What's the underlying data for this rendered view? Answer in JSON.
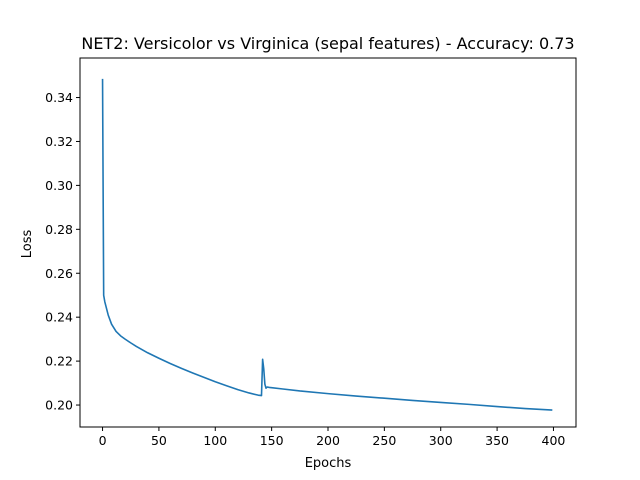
{
  "chart_data": {
    "type": "line",
    "title": "NET2: Versicolor vs Virginica (sepal features) - Accuracy: 0.73",
    "xlabel": "Epochs",
    "ylabel": "Loss",
    "xlim": [
      -20,
      420
    ],
    "ylim": [
      0.19,
      0.358
    ],
    "xticks": [
      0,
      50,
      100,
      150,
      200,
      250,
      300,
      350,
      400
    ],
    "yticks": [
      0.2,
      0.22,
      0.24,
      0.26,
      0.28,
      0.3,
      0.32,
      0.34
    ],
    "grid": false,
    "color": "#1f77b4",
    "series": [
      {
        "x": [
          0,
          1,
          2,
          3,
          5,
          8,
          12,
          16,
          20,
          25,
          30,
          40,
          50,
          60,
          70,
          80,
          90,
          100,
          110,
          120,
          130,
          138,
          141,
          142,
          143,
          144,
          145,
          146,
          148,
          150,
          160,
          175,
          200,
          225,
          250,
          275,
          300,
          325,
          350,
          375,
          399
        ],
        "y": [
          0.3485,
          0.25,
          0.247,
          0.245,
          0.241,
          0.2368,
          0.2335,
          0.2315,
          0.23,
          0.2283,
          0.2267,
          0.2238,
          0.2213,
          0.2189,
          0.2167,
          0.2146,
          0.2126,
          0.2106,
          0.2088,
          0.207,
          0.2055,
          0.2045,
          0.2043,
          0.2208,
          0.2165,
          0.2095,
          0.2077,
          0.2082,
          0.208,
          0.2079,
          0.2073,
          0.2064,
          0.2052,
          0.2041,
          0.2031,
          0.2021,
          0.2012,
          0.2003,
          0.1993,
          0.1984,
          0.1977
        ]
      }
    ]
  }
}
